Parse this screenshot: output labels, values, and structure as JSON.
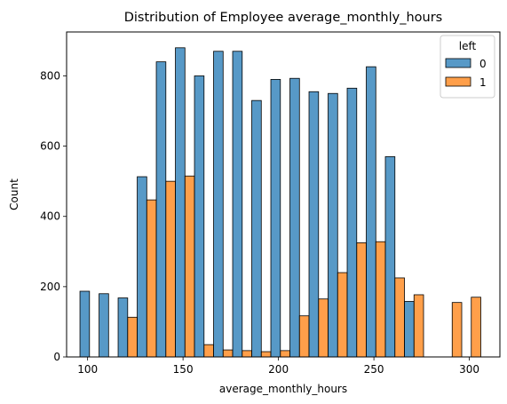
{
  "chart_data": {
    "type": "bar",
    "title": "Distribution of Employee average_monthly_hours",
    "xlabel": "average_monthly_hours",
    "ylabel": "Count",
    "xlim": [
      89,
      316
    ],
    "ylim": [
      0,
      925
    ],
    "xticks": [
      100,
      150,
      200,
      250,
      300
    ],
    "yticks": [
      0,
      200,
      400,
      600,
      800
    ],
    "bin_width": 10,
    "bin_starts": [
      96,
      106,
      116,
      126,
      136,
      146,
      156,
      166,
      176,
      186,
      196,
      206,
      216,
      226,
      236,
      246,
      256,
      266,
      276,
      286,
      296,
      306
    ],
    "legend": {
      "title": "left",
      "placement": "top-right"
    },
    "series": [
      {
        "name": "0",
        "color": "#1f77b4",
        "values": [
          187,
          180,
          168,
          513,
          840,
          880,
          800,
          870,
          870,
          730,
          790,
          793,
          755,
          750,
          765,
          826,
          570,
          158,
          0,
          0,
          0,
          0
        ]
      },
      {
        "name": "1",
        "color": "#ff7f0e",
        "values": [
          0,
          0,
          113,
          447,
          500,
          515,
          35,
          20,
          18,
          15,
          18,
          117,
          165,
          240,
          325,
          328,
          225,
          177,
          0,
          155,
          170,
          0
        ]
      }
    ]
  }
}
